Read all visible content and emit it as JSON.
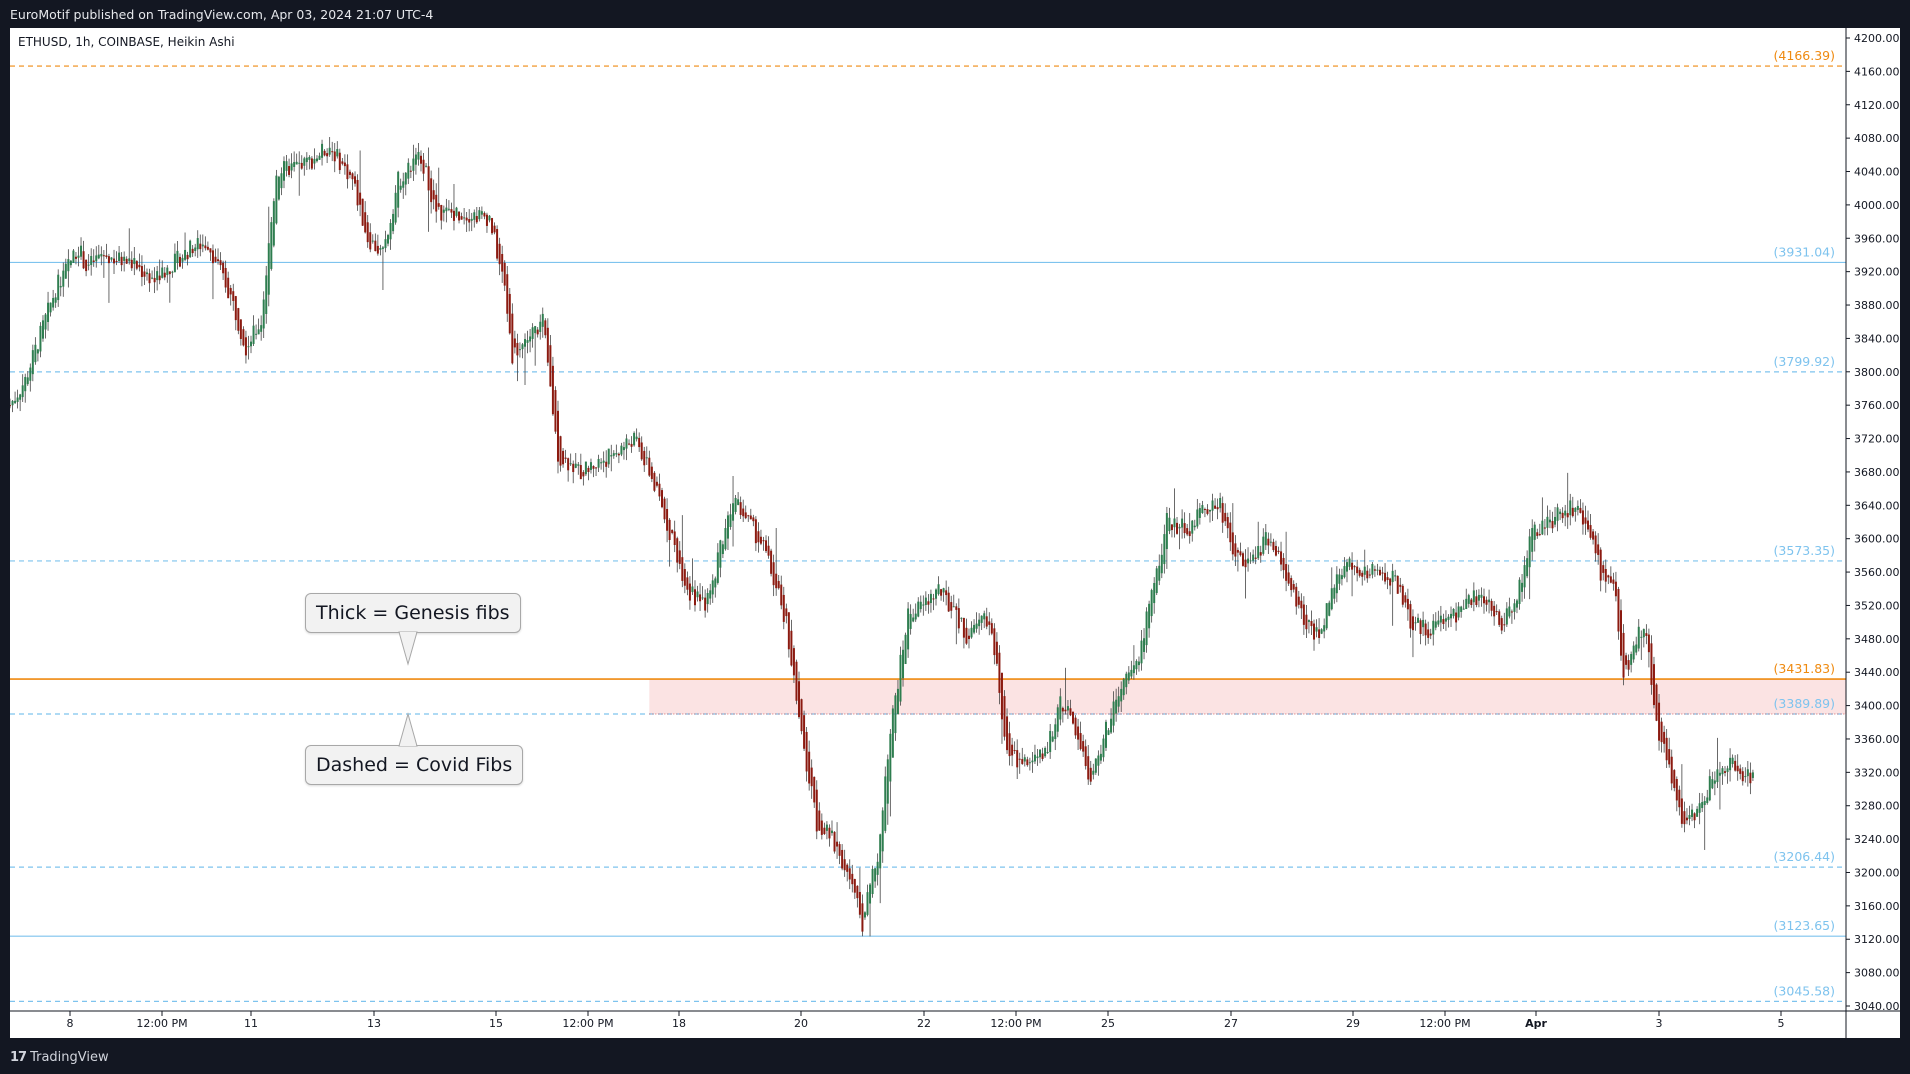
{
  "header": {
    "published": "EuroMotif published on TradingView.com, Apr 03, 2024 21:07 UTC-4"
  },
  "footer": {
    "brand": "TradingView",
    "brand_icon": "tradingview-logo-icon"
  },
  "chart_data": {
    "type": "candlestick",
    "symbol_line": "ETHUSD, 1h, COINBASE, Heikin Ashi",
    "style": "Heikin Ashi",
    "colors": {
      "up": "#2e7d4f",
      "down": "#8b1a10",
      "wick": "#444444",
      "genesis": "#ef8a10",
      "covid": "#7ec3ee",
      "zone": "#fbe3e3"
    },
    "ylim": [
      3040,
      4200
    ],
    "y_ticks": [
      "4200.00",
      "4160.00",
      "4120.00",
      "4080.00",
      "4040.00",
      "4000.00",
      "3960.00",
      "3920.00",
      "3880.00",
      "3840.00",
      "3800.00",
      "3760.00",
      "3720.00",
      "3680.00",
      "3640.00",
      "3600.00",
      "3560.00",
      "3520.00",
      "3480.00",
      "3440.00",
      "3400.00",
      "3360.00",
      "3320.00",
      "3280.00",
      "3240.00",
      "3200.00",
      "3160.00",
      "3120.00",
      "3080.00",
      "3040.00"
    ],
    "x_ticks": [
      "8",
      "12:00 PM",
      "11",
      "13",
      "15",
      "12:00 PM",
      "18",
      "20",
      "22",
      "12:00 PM",
      "25",
      "27",
      "29",
      "12:00 PM",
      "Apr",
      "3",
      "5"
    ],
    "path_points": [
      {
        "t": "Mar 7 00:00",
        "p": 3760
      },
      {
        "t": "Mar 7 06:00",
        "p": 3790
      },
      {
        "t": "Mar 7 18:00",
        "p": 3900
      },
      {
        "t": "Mar 8 03:00",
        "p": 3950
      },
      {
        "t": "Mar 8 06:00",
        "p": 3925
      },
      {
        "t": "Mar 8 12:00",
        "p": 3940
      },
      {
        "t": "Mar 9 00:00",
        "p": 3930
      },
      {
        "t": "Mar 9 09:00",
        "p": 3910
      },
      {
        "t": "Mar 10 00:00",
        "p": 3950
      },
      {
        "t": "Mar 10 06:00",
        "p": 3955
      },
      {
        "t": "Mar 10 15:00",
        "p": 3890
      },
      {
        "t": "Mar 10 21:00",
        "p": 3830
      },
      {
        "t": "Mar 11 03:00",
        "p": 3860
      },
      {
        "t": "Mar 11 09:00",
        "p": 4040
      },
      {
        "t": "Mar 11 21:00",
        "p": 4050
      },
      {
        "t": "Mar 12 06:00",
        "p": 4070
      },
      {
        "t": "Mar 12 15:00",
        "p": 4030
      },
      {
        "t": "Mar 12 21:00",
        "p": 3960
      },
      {
        "t": "Mar 13 03:00",
        "p": 3940
      },
      {
        "t": "Mar 13 09:00",
        "p": 4030
      },
      {
        "t": "Mar 13 18:00",
        "p": 4060
      },
      {
        "t": "Mar 14 00:00",
        "p": 3990
      },
      {
        "t": "Mar 14 12:00",
        "p": 3990
      },
      {
        "t": "Mar 14 21:00",
        "p": 3985
      },
      {
        "t": "Mar 15 03:00",
        "p": 3900
      },
      {
        "t": "Mar 15 06:00",
        "p": 3820
      },
      {
        "t": "Mar 15 18:00",
        "p": 3860
      },
      {
        "t": "Mar 16 00:00",
        "p": 3700
      },
      {
        "t": "Mar 16 09:00",
        "p": 3680
      },
      {
        "t": "Mar 16 21:00",
        "p": 3700
      },
      {
        "t": "Mar 17 06:00",
        "p": 3720
      },
      {
        "t": "Mar 17 12:00",
        "p": 3680
      },
      {
        "t": "Mar 17 21:00",
        "p": 3600
      },
      {
        "t": "Mar 18 03:00",
        "p": 3540
      },
      {
        "t": "Mar 18 09:00",
        "p": 3520
      },
      {
        "t": "Mar 18 12:00",
        "p": 3530
      },
      {
        "t": "Mar 18 15:00",
        "p": 3580
      },
      {
        "t": "Mar 18 21:00",
        "p": 3650
      },
      {
        "t": "Mar 19 03:00",
        "p": 3620
      },
      {
        "t": "Mar 19 09:00",
        "p": 3590
      },
      {
        "t": "Mar 19 18:00",
        "p": 3500
      },
      {
        "t": "Mar 20 00:00",
        "p": 3360
      },
      {
        "t": "Mar 20 06:00",
        "p": 3260
      },
      {
        "t": "Mar 20 12:00",
        "p": 3240
      },
      {
        "t": "Mar 20 18:00",
        "p": 3200
      },
      {
        "t": "Mar 21 00:00",
        "p": 3140
      },
      {
        "t": "Mar 21 06:00",
        "p": 3220
      },
      {
        "t": "Mar 21 12:00",
        "p": 3390
      },
      {
        "t": "Mar 21 18:00",
        "p": 3510
      },
      {
        "t": "Mar 22 00:00",
        "p": 3520
      },
      {
        "t": "Mar 22 06:00",
        "p": 3540
      },
      {
        "t": "Mar 22 12:00",
        "p": 3510
      },
      {
        "t": "Mar 22 18:00",
        "p": 3480
      },
      {
        "t": "Mar 23 00:00",
        "p": 3510
      },
      {
        "t": "Mar 23 03:00",
        "p": 3490
      },
      {
        "t": "Mar 23 09:00",
        "p": 3340
      },
      {
        "t": "Mar 23 18:00",
        "p": 3330
      },
      {
        "t": "Mar 24 00:00",
        "p": 3340
      },
      {
        "t": "Mar 24 03:00",
        "p": 3370
      },
      {
        "t": "Mar 24 06:00",
        "p": 3410
      },
      {
        "t": "Mar 24 12:00",
        "p": 3370
      },
      {
        "t": "Mar 24 18:00",
        "p": 3310
      },
      {
        "t": "Mar 25 00:00",
        "p": 3370
      },
      {
        "t": "Mar 25 06:00",
        "p": 3420
      },
      {
        "t": "Mar 25 12:00",
        "p": 3450
      },
      {
        "t": "Mar 25 18:00",
        "p": 3530
      },
      {
        "t": "Mar 26 00:00",
        "p": 3620
      },
      {
        "t": "Mar 26 09:00",
        "p": 3610
      },
      {
        "t": "Mar 26 15:00",
        "p": 3640
      },
      {
        "t": "Mar 26 21:00",
        "p": 3640
      },
      {
        "t": "Mar 27 03:00",
        "p": 3580
      },
      {
        "t": "Mar 27 09:00",
        "p": 3570
      },
      {
        "t": "Mar 27 15:00",
        "p": 3600
      },
      {
        "t": "Mar 27 21:00",
        "p": 3570
      },
      {
        "t": "Mar 28 06:00",
        "p": 3500
      },
      {
        "t": "Mar 28 12:00",
        "p": 3480
      },
      {
        "t": "Mar 28 18:00",
        "p": 3550
      },
      {
        "t": "Mar 29 00:00",
        "p": 3570
      },
      {
        "t": "Mar 29 06:00",
        "p": 3560
      },
      {
        "t": "Mar 29 12:00",
        "p": 3560
      },
      {
        "t": "Mar 29 18:00",
        "p": 3550
      },
      {
        "t": "Mar 30 00:00",
        "p": 3500
      },
      {
        "t": "Mar 30 06:00",
        "p": 3490
      },
      {
        "t": "Mar 30 12:00",
        "p": 3500
      },
      {
        "t": "Mar 30 18:00",
        "p": 3510
      },
      {
        "t": "Mar 31 00:00",
        "p": 3530
      },
      {
        "t": "Mar 31 06:00",
        "p": 3520
      },
      {
        "t": "Mar 31 12:00",
        "p": 3500
      },
      {
        "t": "Mar 31 18:00",
        "p": 3530
      },
      {
        "t": "Apr 1 00:00",
        "p": 3610
      },
      {
        "t": "Apr 1 06:00",
        "p": 3620
      },
      {
        "t": "Apr 1 12:00",
        "p": 3630
      },
      {
        "t": "Apr 1 18:00",
        "p": 3640
      },
      {
        "t": "Apr 1 21:00",
        "p": 3620
      },
      {
        "t": "Apr 2 03:00",
        "p": 3560
      },
      {
        "t": "Apr 2 09:00",
        "p": 3530
      },
      {
        "t": "Apr 2 12:00",
        "p": 3430
      },
      {
        "t": "Apr 2 18:00",
        "p": 3490
      },
      {
        "t": "Apr 2 21:00",
        "p": 3490
      },
      {
        "t": "Apr 3 00:00",
        "p": 3390
      },
      {
        "t": "Apr 3 06:00",
        "p": 3320
      },
      {
        "t": "Apr 3 12:00",
        "p": 3250
      },
      {
        "t": "Apr 3 18:00",
        "p": 3280
      },
      {
        "t": "Apr 3 21:00",
        "p": 3300
      },
      {
        "t": "Apr 4 00:00",
        "p": 3320
      },
      {
        "t": "Apr 4 06:00",
        "p": 3330
      },
      {
        "t": "Apr 4 12:00",
        "p": 3310
      },
      {
        "t": "Apr 4 15:00",
        "p": 3320
      }
    ],
    "levels": [
      {
        "label": "(4166.39)",
        "price": 4166.39,
        "set": "genesis",
        "dash": true,
        "span": "full"
      },
      {
        "label": "(3931.04)",
        "price": 3931.04,
        "set": "covid",
        "dash": false,
        "span": "full"
      },
      {
        "label": "(3799.92)",
        "price": 3799.92,
        "set": "covid",
        "dash": true,
        "span": "full"
      },
      {
        "label": "(3573.35)",
        "price": 3573.35,
        "set": "covid",
        "dash": true,
        "span": "full"
      },
      {
        "label": "(3431.83)",
        "price": 3431.83,
        "set": "genesis",
        "dash": false,
        "span": "full"
      },
      {
        "label": "(3389.89)",
        "price": 3389.89,
        "set": "covid",
        "dash": true,
        "span": "full"
      },
      {
        "label": "(3206.44)",
        "price": 3206.44,
        "set": "covid",
        "dash": true,
        "span": "full"
      },
      {
        "label": "(3123.65)",
        "price": 3123.65,
        "set": "covid",
        "dash": false,
        "span": "full"
      },
      {
        "label": "(3045.58)",
        "price": 3045.58,
        "set": "covid",
        "dash": true,
        "span": "full"
      }
    ],
    "zone": {
      "from_t": "Mar 17 12:00",
      "low": 3389.89,
      "high": 3431.83
    },
    "annotations": [
      {
        "text": "Thick = Genesis fibs",
        "pointer": "down"
      },
      {
        "text": "Dashed = Covid Fibs",
        "pointer": "up"
      }
    ]
  }
}
